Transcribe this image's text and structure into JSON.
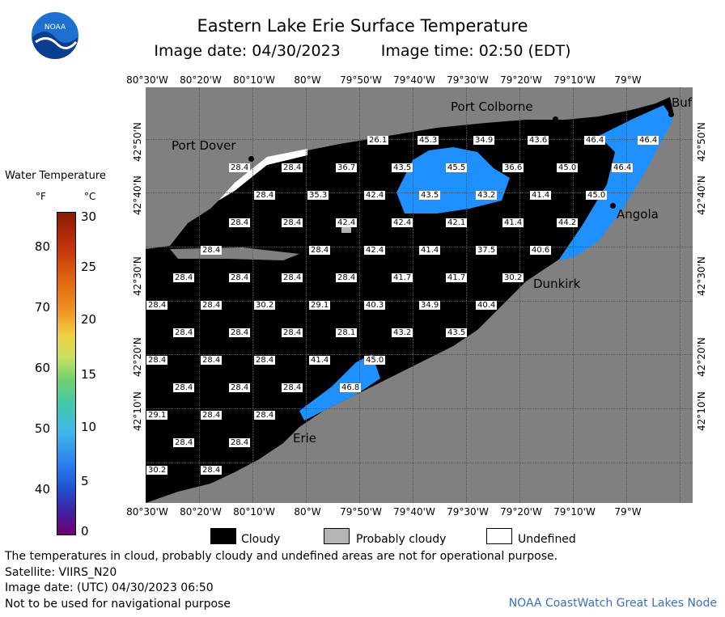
{
  "header": {
    "title": "Eastern Lake Erie Surface Temperature",
    "image_date": "Image date: 04/30/2023",
    "image_time": "Image time: 02:50 (EDT)",
    "logo_text": "NOAA"
  },
  "legend": {
    "title": "Water Temperature",
    "unit_f": "°F",
    "unit_c": "°C",
    "f_ticks": [
      "80",
      "70",
      "60",
      "50",
      "40"
    ],
    "c_ticks": [
      "30",
      "25",
      "20",
      "15",
      "10",
      "5",
      "0"
    ],
    "categories": [
      {
        "label": "Cloudy",
        "color": "#000000"
      },
      {
        "label": "Probably cloudy",
        "color": "#b4b4b4"
      },
      {
        "label": "Undefined",
        "color": "#ffffff"
      }
    ]
  },
  "axes": {
    "lon_labels": [
      "80°30'W",
      "80°20'W",
      "80°10'W",
      "80°W",
      "79°50'W",
      "79°40'W",
      "79°30'W",
      "79°20'W",
      "79°10'W",
      "79°W"
    ],
    "lat_labels": [
      "42°50'N",
      "42°40'N",
      "42°30'N",
      "42°20'N",
      "42°10'N"
    ]
  },
  "cities": {
    "port_dover": "Port Dover",
    "port_colborne": "Port Colborne",
    "buffalo": "Buf",
    "angola": "Angola",
    "dunkirk": "Dunkirk",
    "erie": "Erie"
  },
  "temperatures": [
    "26.1",
    "45.3",
    "34.9",
    "43.6",
    "46.4",
    "46.4",
    "28.4",
    "28.4",
    "36.7",
    "43.5",
    "45.5",
    "36.6",
    "45.0",
    "46.4",
    "28.4",
    "35.3",
    "42.4",
    "43.5",
    "43.2",
    "41.4",
    "45.0",
    "28.4",
    "28.4",
    "42.4",
    "42.4",
    "42.1",
    "41.4",
    "44.2",
    "28.4",
    "28.4",
    "42.4",
    "41.4",
    "37.5",
    "40.6",
    "28.4",
    "28.4",
    "28.4",
    "28.4",
    "41.7",
    "41.7",
    "30.2",
    "28.4",
    "28.4",
    "30.2",
    "29.1",
    "40.3",
    "34.9",
    "40.4",
    "28.4",
    "28.4",
    "28.4",
    "28.1",
    "43.2",
    "43.5",
    "28.4",
    "28.4",
    "28.4",
    "41.4",
    "45.0",
    "28.4",
    "28.4",
    "28.4",
    "46.8",
    "29.1",
    "28.4",
    "28.4",
    "28.4",
    "28.4",
    "30.2",
    "28.4"
  ],
  "notes": {
    "disclaimer": "The temperatures in cloud, probably cloudy and undefined areas are not for operational purpose.",
    "satellite": "Satellite: VIIRS_N20",
    "utc_date": "Image date: (UTC) 04/30/2023  06:50",
    "navigation": "Not to be used for navigational purpose",
    "credit": "NOAA CoastWatch Great Lakes Node"
  },
  "colors": {
    "land": "#808080",
    "cloud": "#000000",
    "water_blue": "#1e90ff",
    "water_light": "#5ab4ff",
    "credit_blue": "#3a6fc4"
  }
}
